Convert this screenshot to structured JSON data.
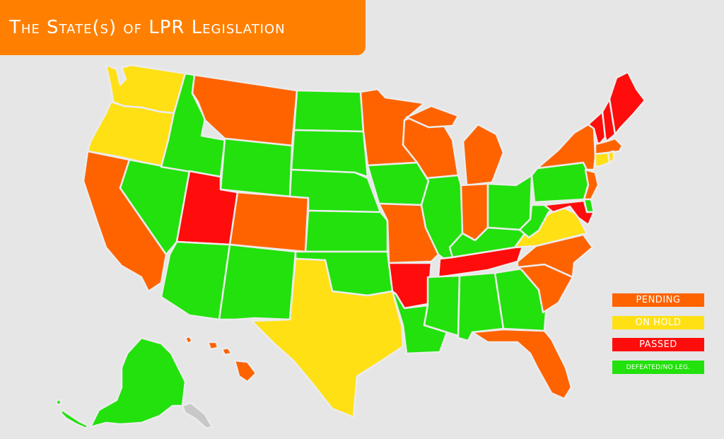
{
  "title": "The State(s) of LPR Legislation",
  "colors": {
    "banner": "#ff8000",
    "pending": "#ff6300",
    "on_hold": "#ffe014",
    "passed": "#ff0c0c",
    "defeated": "#22e10c",
    "no_data": "#c8c8c8"
  },
  "legend": {
    "pending": "PENDING",
    "on_hold": "ON HOLD",
    "passed": "PASSED",
    "defeated": "DEFEATED/NO LEG."
  },
  "states": {
    "WA": "on_hold",
    "OR": "on_hold",
    "CA": "pending",
    "NV": "defeated",
    "ID": "defeated",
    "MT": "pending",
    "WY": "defeated",
    "UT": "passed",
    "AZ": "defeated",
    "CO": "pending",
    "NM": "defeated",
    "ND": "defeated",
    "SD": "defeated",
    "NE": "defeated",
    "KS": "defeated",
    "OK": "defeated",
    "TX": "on_hold",
    "MN": "pending",
    "IA": "defeated",
    "MO": "pending",
    "AR": "passed",
    "LA": "defeated",
    "WI": "pending",
    "IL": "defeated",
    "MI": "pending",
    "IN": "pending",
    "OH": "defeated",
    "KY": "defeated",
    "TN": "passed",
    "MS": "defeated",
    "AL": "defeated",
    "GA": "defeated",
    "FL": "pending",
    "SC": "pending",
    "NC": "pending",
    "VA": "on_hold",
    "WV": "defeated",
    "PA": "defeated",
    "NY": "pending",
    "NJ": "pending",
    "DE": "defeated",
    "MD": "passed",
    "VT": "passed",
    "NH": "passed",
    "ME": "passed",
    "MA": "pending",
    "CT": "on_hold",
    "RI": "on_hold",
    "AK": "defeated",
    "HI": "pending"
  }
}
